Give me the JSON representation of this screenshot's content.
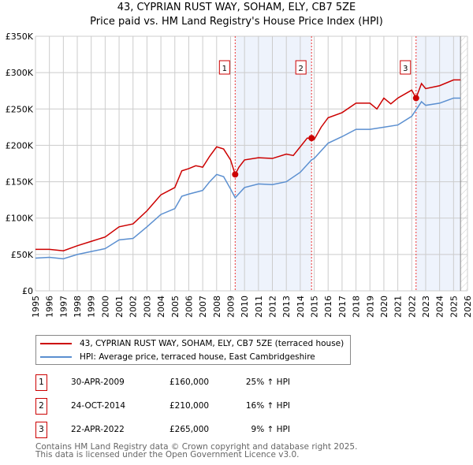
{
  "title": "43, CYPRIAN RUST WAY, SOHAM, ELY, CB7 5ZE",
  "subtitle": "Price paid vs. HM Land Registry's House Price Index (HPI)",
  "chart_data": {
    "type": "line",
    "title": "43, CYPRIAN RUST WAY, SOHAM, ELY, CB7 5ZE",
    "subtitle": "Price paid vs. HM Land Registry's House Price Index (HPI)",
    "xlim": [
      1995,
      2026
    ],
    "ylim": [
      0,
      350000
    ],
    "y_ticks": [
      {
        "v": 0,
        "label": "£0"
      },
      {
        "v": 50000,
        "label": "£50K"
      },
      {
        "v": 100000,
        "label": "£100K"
      },
      {
        "v": 150000,
        "label": "£150K"
      },
      {
        "v": 200000,
        "label": "£200K"
      },
      {
        "v": 250000,
        "label": "£250K"
      },
      {
        "v": 300000,
        "label": "£300K"
      },
      {
        "v": 350000,
        "label": "£350K"
      }
    ],
    "x_ticks": [
      "1995",
      "1996",
      "1997",
      "1998",
      "1999",
      "2000",
      "2001",
      "2002",
      "2003",
      "2004",
      "2005",
      "2006",
      "2007",
      "2008",
      "2009",
      "2010",
      "2011",
      "2012",
      "2013",
      "2014",
      "2015",
      "2016",
      "2017",
      "2018",
      "2019",
      "2020",
      "2021",
      "2022",
      "2023",
      "2024",
      "2025",
      "2026"
    ],
    "grid": true,
    "series": [
      {
        "name": "43, CYPRIAN RUST WAY, SOHAM, ELY, CB7 5ZE (terraced house)",
        "color": "#cc0000",
        "x": [
          1995,
          1996,
          1997,
          1998,
          1999,
          2000,
          2001,
          2002,
          2003,
          2004,
          2005,
          2005.5,
          2006,
          2006.5,
          2007,
          2007.5,
          2008,
          2008.5,
          2009,
          2009.33,
          2009.6,
          2010,
          2011,
          2012,
          2013,
          2013.5,
          2014,
          2014.5,
          2014.81,
          2015,
          2015.5,
          2016,
          2017,
          2018,
          2019,
          2019.5,
          2020,
          2020.5,
          2021,
          2022,
          2022.31,
          2022.7,
          2023,
          2024,
          2025,
          2025.5
        ],
        "y": [
          57000,
          57000,
          55000,
          62000,
          68000,
          74000,
          88000,
          92000,
          110000,
          132000,
          142000,
          165000,
          168000,
          172000,
          170000,
          185000,
          198000,
          195000,
          180000,
          160000,
          170000,
          180000,
          183000,
          182000,
          188000,
          186000,
          198000,
          210000,
          210000,
          208000,
          225000,
          238000,
          245000,
          258000,
          258000,
          250000,
          265000,
          257000,
          265000,
          276000,
          265000,
          285000,
          278000,
          282000,
          290000,
          290000
        ]
      },
      {
        "name": "HPI: Average price, terraced house, East Cambridgeshire",
        "color": "#5b8fd0",
        "x": [
          1995,
          1996,
          1997,
          1998,
          1999,
          2000,
          2001,
          2002,
          2003,
          2004,
          2005,
          2005.5,
          2006,
          2007,
          2007.5,
          2008,
          2008.5,
          2009,
          2009.33,
          2010,
          2011,
          2012,
          2013,
          2014,
          2014.81,
          2015,
          2016,
          2017,
          2018,
          2019,
          2020,
          2021,
          2022,
          2022.7,
          2023,
          2024,
          2025,
          2025.5
        ],
        "y": [
          45000,
          46000,
          44000,
          50000,
          54000,
          58000,
          70000,
          72000,
          88000,
          105000,
          113000,
          130000,
          133000,
          138000,
          150000,
          160000,
          157000,
          140000,
          128000,
          142000,
          147000,
          146000,
          150000,
          163000,
          180000,
          182000,
          203000,
          212000,
          222000,
          222000,
          225000,
          228000,
          240000,
          260000,
          255000,
          258000,
          265000,
          265000
        ]
      }
    ],
    "sales": [
      {
        "label": "1",
        "x": 2009.33,
        "y": 160000
      },
      {
        "label": "2",
        "x": 2014.81,
        "y": 210000
      },
      {
        "label": "3",
        "x": 2022.31,
        "y": 265000
      }
    ],
    "shaded_ranges": [
      [
        2009.33,
        2014.81
      ],
      [
        2022.31,
        2025.5
      ]
    ],
    "forecast_from": 2025.5,
    "legend": "below"
  },
  "legend": {
    "property": "43, CYPRIAN RUST WAY, SOHAM, ELY, CB7 5ZE (terraced house)",
    "hpi": "HPI: Average price, terraced house, East Cambridgeshire"
  },
  "transactions": [
    {
      "num": "1",
      "date": "30-APR-2009",
      "price": "£160,000",
      "hpi": "25% ↑ HPI"
    },
    {
      "num": "2",
      "date": "24-OCT-2014",
      "price": "£210,000",
      "hpi": "16% ↑ HPI"
    },
    {
      "num": "3",
      "date": "22-APR-2022",
      "price": "£265,000",
      "hpi": "9% ↑ HPI"
    }
  ],
  "footer": {
    "line1": "Contains HM Land Registry data © Crown copyright and database right 2025.",
    "line2": "This data is licensed under the Open Government Licence v3.0."
  }
}
